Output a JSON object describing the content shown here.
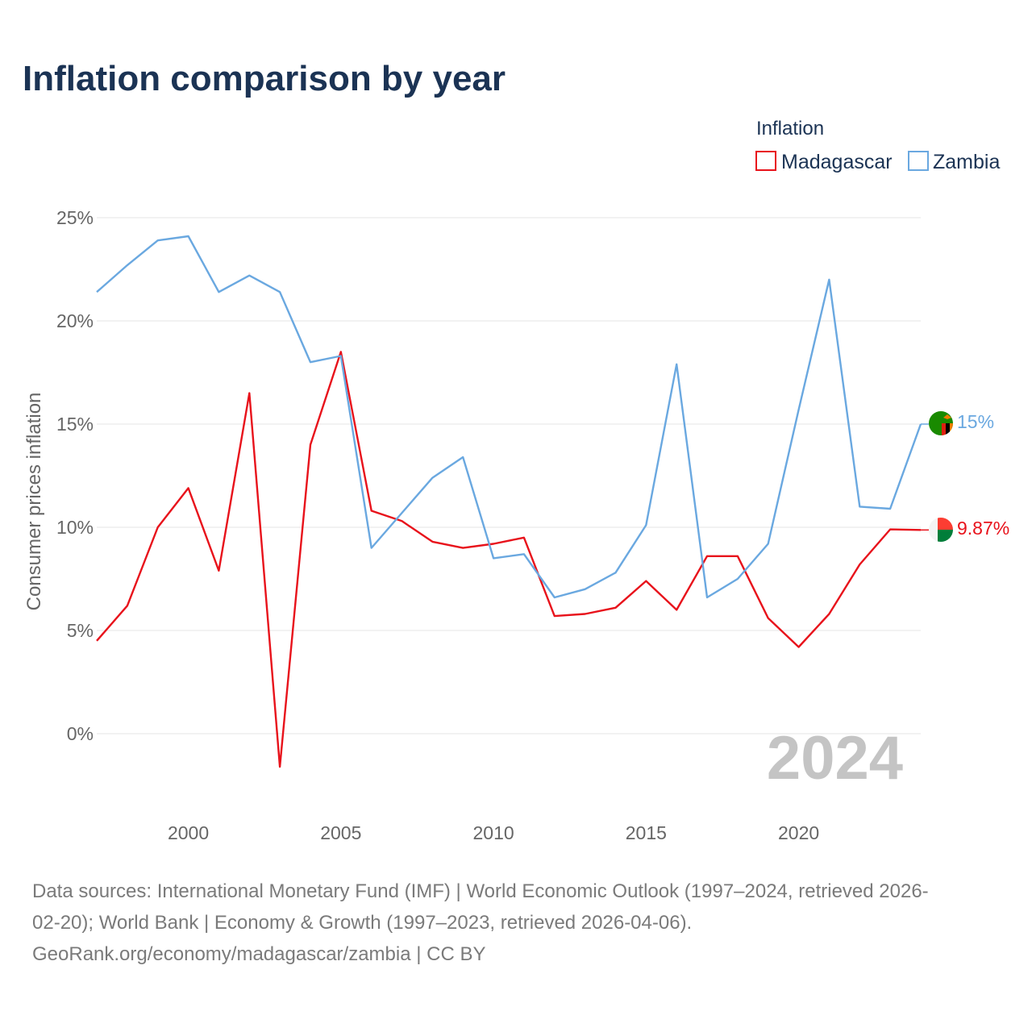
{
  "page": {
    "title": "Inflation comparison by year",
    "watermark_year": "2024",
    "source_lines": [
      "Data sources: International Monetary Fund (IMF) | World Economic Outlook (1997–2024, retrieved 2026-",
      "02-20); World Bank | Economy & Growth (1997–2023, retrieved 2026-04-06).",
      "GeoRank.org/economy/madagascar/zambia | CC BY"
    ]
  },
  "legend": {
    "title": "Inflation",
    "position": "top-right"
  },
  "chart_data": {
    "type": "line",
    "title": "Inflation comparison by year",
    "xlabel": "",
    "ylabel": "Consumer prices inflation",
    "xlim": [
      1997,
      2024
    ],
    "ylim": [
      -3.5,
      26
    ],
    "x_ticks": [
      2000,
      2005,
      2010,
      2015,
      2020
    ],
    "y_ticks": [
      0,
      5,
      10,
      15,
      20,
      25
    ],
    "y_tick_labels": [
      "0%",
      "5%",
      "10%",
      "15%",
      "20%",
      "25%"
    ],
    "grid": true,
    "x": [
      1997,
      1998,
      1999,
      2000,
      2001,
      2002,
      2003,
      2004,
      2005,
      2006,
      2007,
      2008,
      2009,
      2010,
      2011,
      2012,
      2013,
      2014,
      2015,
      2016,
      2017,
      2018,
      2019,
      2020,
      2021,
      2022,
      2023,
      2024
    ],
    "series": [
      {
        "name": "Madagascar",
        "color": "#e8121b",
        "end_label": "9.87%",
        "flag": "madagascar-flag",
        "values": [
          4.5,
          6.2,
          10.0,
          11.9,
          7.9,
          16.5,
          -1.6,
          14.0,
          18.5,
          10.8,
          10.3,
          9.3,
          9.0,
          9.2,
          9.5,
          5.7,
          5.8,
          6.1,
          7.4,
          6.0,
          8.6,
          8.6,
          5.6,
          4.2,
          5.8,
          8.2,
          9.9,
          9.87
        ]
      },
      {
        "name": "Zambia",
        "color": "#6aa8e0",
        "end_label": "15%",
        "flag": "zambia-flag",
        "values": [
          21.4,
          22.7,
          23.9,
          24.1,
          21.4,
          22.2,
          21.4,
          18.0,
          18.3,
          9.0,
          10.7,
          12.4,
          13.4,
          8.5,
          8.7,
          6.6,
          7.0,
          7.8,
          10.1,
          17.9,
          6.6,
          7.5,
          9.2,
          15.7,
          22.0,
          11.0,
          10.9,
          15.0
        ]
      }
    ]
  }
}
